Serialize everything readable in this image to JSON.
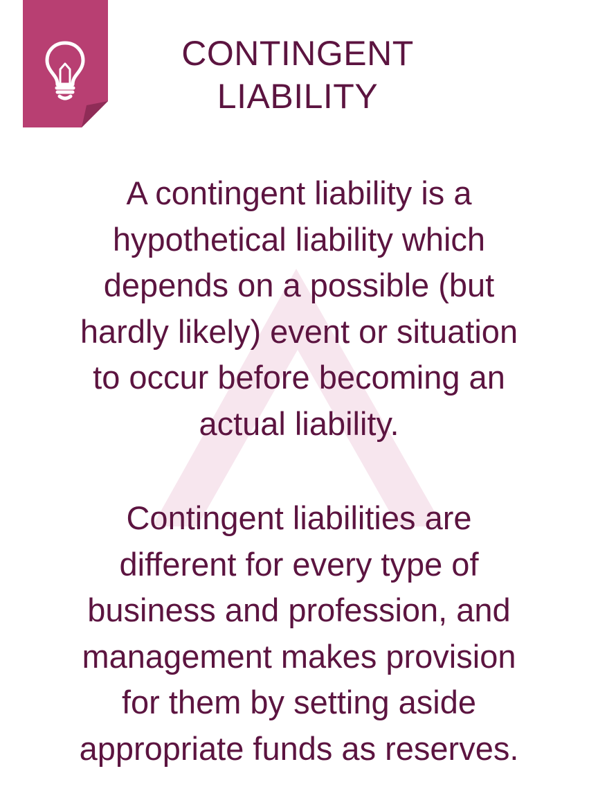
{
  "title": {
    "lines": [
      "CONTINGENT",
      "LIABILITY"
    ]
  },
  "paragraphs": [
    {
      "lines": [
        "A contingent liability is a",
        "hypothetical liability which",
        "depends on a possible (but",
        "hardly likely) event or situation",
        "to occur before becoming an",
        "actual liability."
      ]
    },
    {
      "lines": [
        "Contingent liabilities are",
        "different for every type of",
        "business and profession, and",
        "management makes provision",
        "for them by setting aside",
        "appropriate funds as reserves."
      ]
    }
  ],
  "colors": {
    "text": "#5c1440",
    "badge": "#b83f72",
    "badge_fold": "#8f2c57",
    "watermark": "#f7e6ee"
  },
  "icons": {
    "badge_icon": "lightbulb-icon",
    "watermark": "a-logo-watermark"
  }
}
